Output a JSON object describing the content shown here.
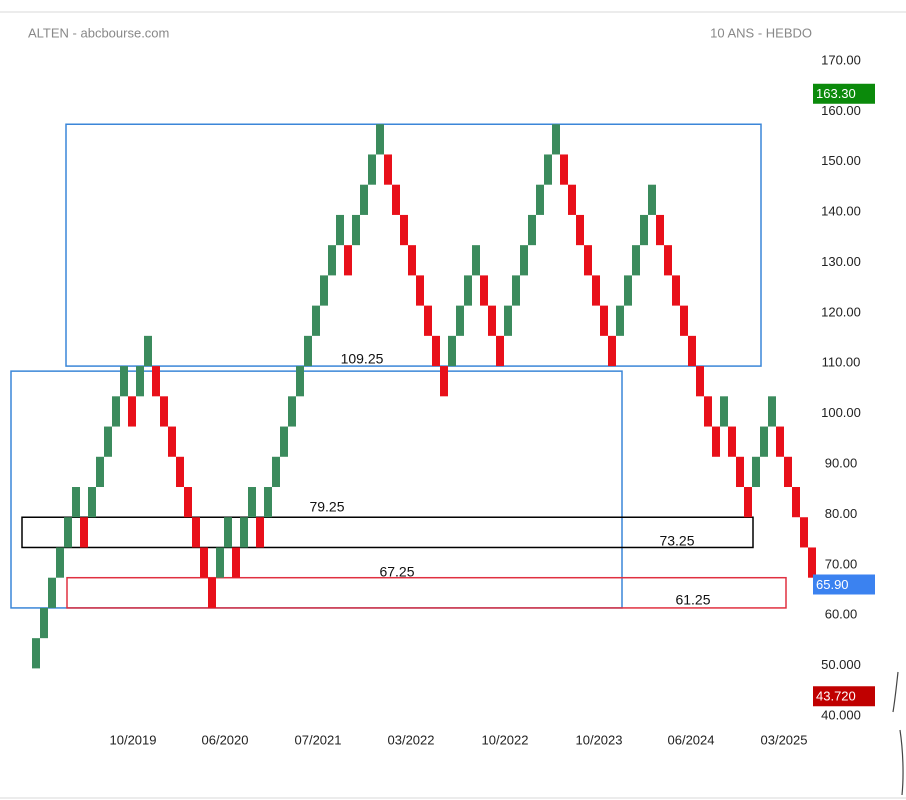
{
  "chart_data": {
    "type": "renko",
    "title": "ALTEN - abcbourse.com",
    "subtitle": "10 ANS - HEBDO",
    "up_color": "#3b8b5d",
    "down_color": "#e8101a",
    "ylim": [
      40,
      170
    ],
    "yticks": [
      {
        "value": 40,
        "label": "40.000"
      },
      {
        "value": 50,
        "label": "50.000"
      },
      {
        "value": 60,
        "label": "60.00"
      },
      {
        "value": 70,
        "label": "70.00"
      },
      {
        "value": 80,
        "label": "80.00"
      },
      {
        "value": 90,
        "label": "90.00"
      },
      {
        "value": 100,
        "label": "100.00"
      },
      {
        "value": 110,
        "label": "110.00"
      },
      {
        "value": 120,
        "label": "120.00"
      },
      {
        "value": 130,
        "label": "130.00"
      },
      {
        "value": 140,
        "label": "140.00"
      },
      {
        "value": 150,
        "label": "150.00"
      },
      {
        "value": 160,
        "label": "160.00"
      },
      {
        "value": 170,
        "label": "170.00"
      }
    ],
    "categories": [
      "10/2019",
      "06/2020",
      "07/2021",
      "03/2022",
      "10/2022",
      "10/2023",
      "06/2024",
      "03/2025"
    ],
    "open": [
      49.25,
      55.25,
      61.25,
      67.25,
      73.25,
      79.25,
      79.25,
      79.25,
      85.25,
      91.25,
      97.25,
      103.25,
      103.25,
      103.25,
      109.25,
      109.25,
      103.25,
      97.25,
      91.25,
      85.25,
      79.25,
      73.25,
      67.25,
      67.25,
      73.25,
      73.25,
      73.25,
      79.25,
      79.25,
      79.25,
      85.25,
      91.25,
      97.25,
      103.25,
      109.25,
      115.25,
      121.25,
      127.25,
      133.25,
      133.25,
      133.25,
      139.25,
      145.25,
      151.25,
      151.25,
      145.25,
      139.25,
      133.25,
      127.25,
      121.25,
      115.25,
      109.25,
      109.25,
      115.25,
      121.25,
      127.25,
      127.25,
      121.25,
      115.25,
      115.25,
      121.25,
      127.25,
      133.25,
      139.25,
      145.25,
      151.25,
      151.25,
      145.25,
      139.25,
      133.25,
      127.25,
      121.25,
      115.25,
      115.25,
      121.25,
      127.25,
      133.25,
      139.25,
      139.25,
      133.25,
      127.25,
      121.25,
      115.25,
      109.25,
      103.25,
      97.25,
      97.25,
      97.25,
      91.25,
      85.25,
      85.25,
      91.25,
      97.25,
      97.25,
      91.25,
      85.25,
      79.25,
      73.25
    ],
    "close": [
      55.25,
      61.25,
      67.25,
      73.25,
      79.25,
      85.25,
      73.25,
      85.25,
      91.25,
      97.25,
      103.25,
      109.25,
      97.25,
      109.25,
      115.25,
      103.25,
      97.25,
      91.25,
      85.25,
      79.25,
      73.25,
      67.25,
      61.25,
      73.25,
      79.25,
      67.25,
      79.25,
      85.25,
      73.25,
      85.25,
      91.25,
      97.25,
      103.25,
      109.25,
      115.25,
      121.25,
      127.25,
      133.25,
      139.25,
      127.25,
      139.25,
      145.25,
      151.25,
      157.25,
      145.25,
      139.25,
      133.25,
      127.25,
      121.25,
      115.25,
      109.25,
      103.25,
      115.25,
      121.25,
      127.25,
      133.25,
      121.25,
      115.25,
      109.25,
      121.25,
      127.25,
      133.25,
      139.25,
      145.25,
      151.25,
      157.25,
      145.25,
      139.25,
      133.25,
      127.25,
      121.25,
      115.25,
      109.25,
      121.25,
      127.25,
      133.25,
      139.25,
      145.25,
      133.25,
      127.25,
      121.25,
      115.25,
      109.25,
      103.25,
      97.25,
      91.25,
      103.25,
      91.25,
      85.25,
      79.25,
      91.25,
      97.25,
      103.25,
      91.25,
      85.25,
      79.25,
      73.25,
      67.25
    ],
    "price_tags": [
      {
        "value": 163.3,
        "label": "163.30",
        "color": "#0b8a0b"
      },
      {
        "value": 65.9,
        "label": "65.90",
        "color": "#3b82f0"
      },
      {
        "value": 43.72,
        "label": "43.720",
        "color": "#c00000"
      }
    ],
    "zones": [
      {
        "top": 157.25,
        "bottom": 109.25,
        "color": "#3a86d8",
        "labels": [
          "109.25"
        ]
      },
      {
        "top": 108.25,
        "bottom": 61.25,
        "color": "#3a86d8",
        "labels": []
      },
      {
        "top": 79.25,
        "bottom": 73.25,
        "color": "#000000",
        "labels": [
          "79.25",
          "73.25"
        ]
      },
      {
        "top": 67.25,
        "bottom": 61.25,
        "color": "#e03040",
        "labels": [
          "67.25",
          "61.25"
        ]
      }
    ]
  }
}
